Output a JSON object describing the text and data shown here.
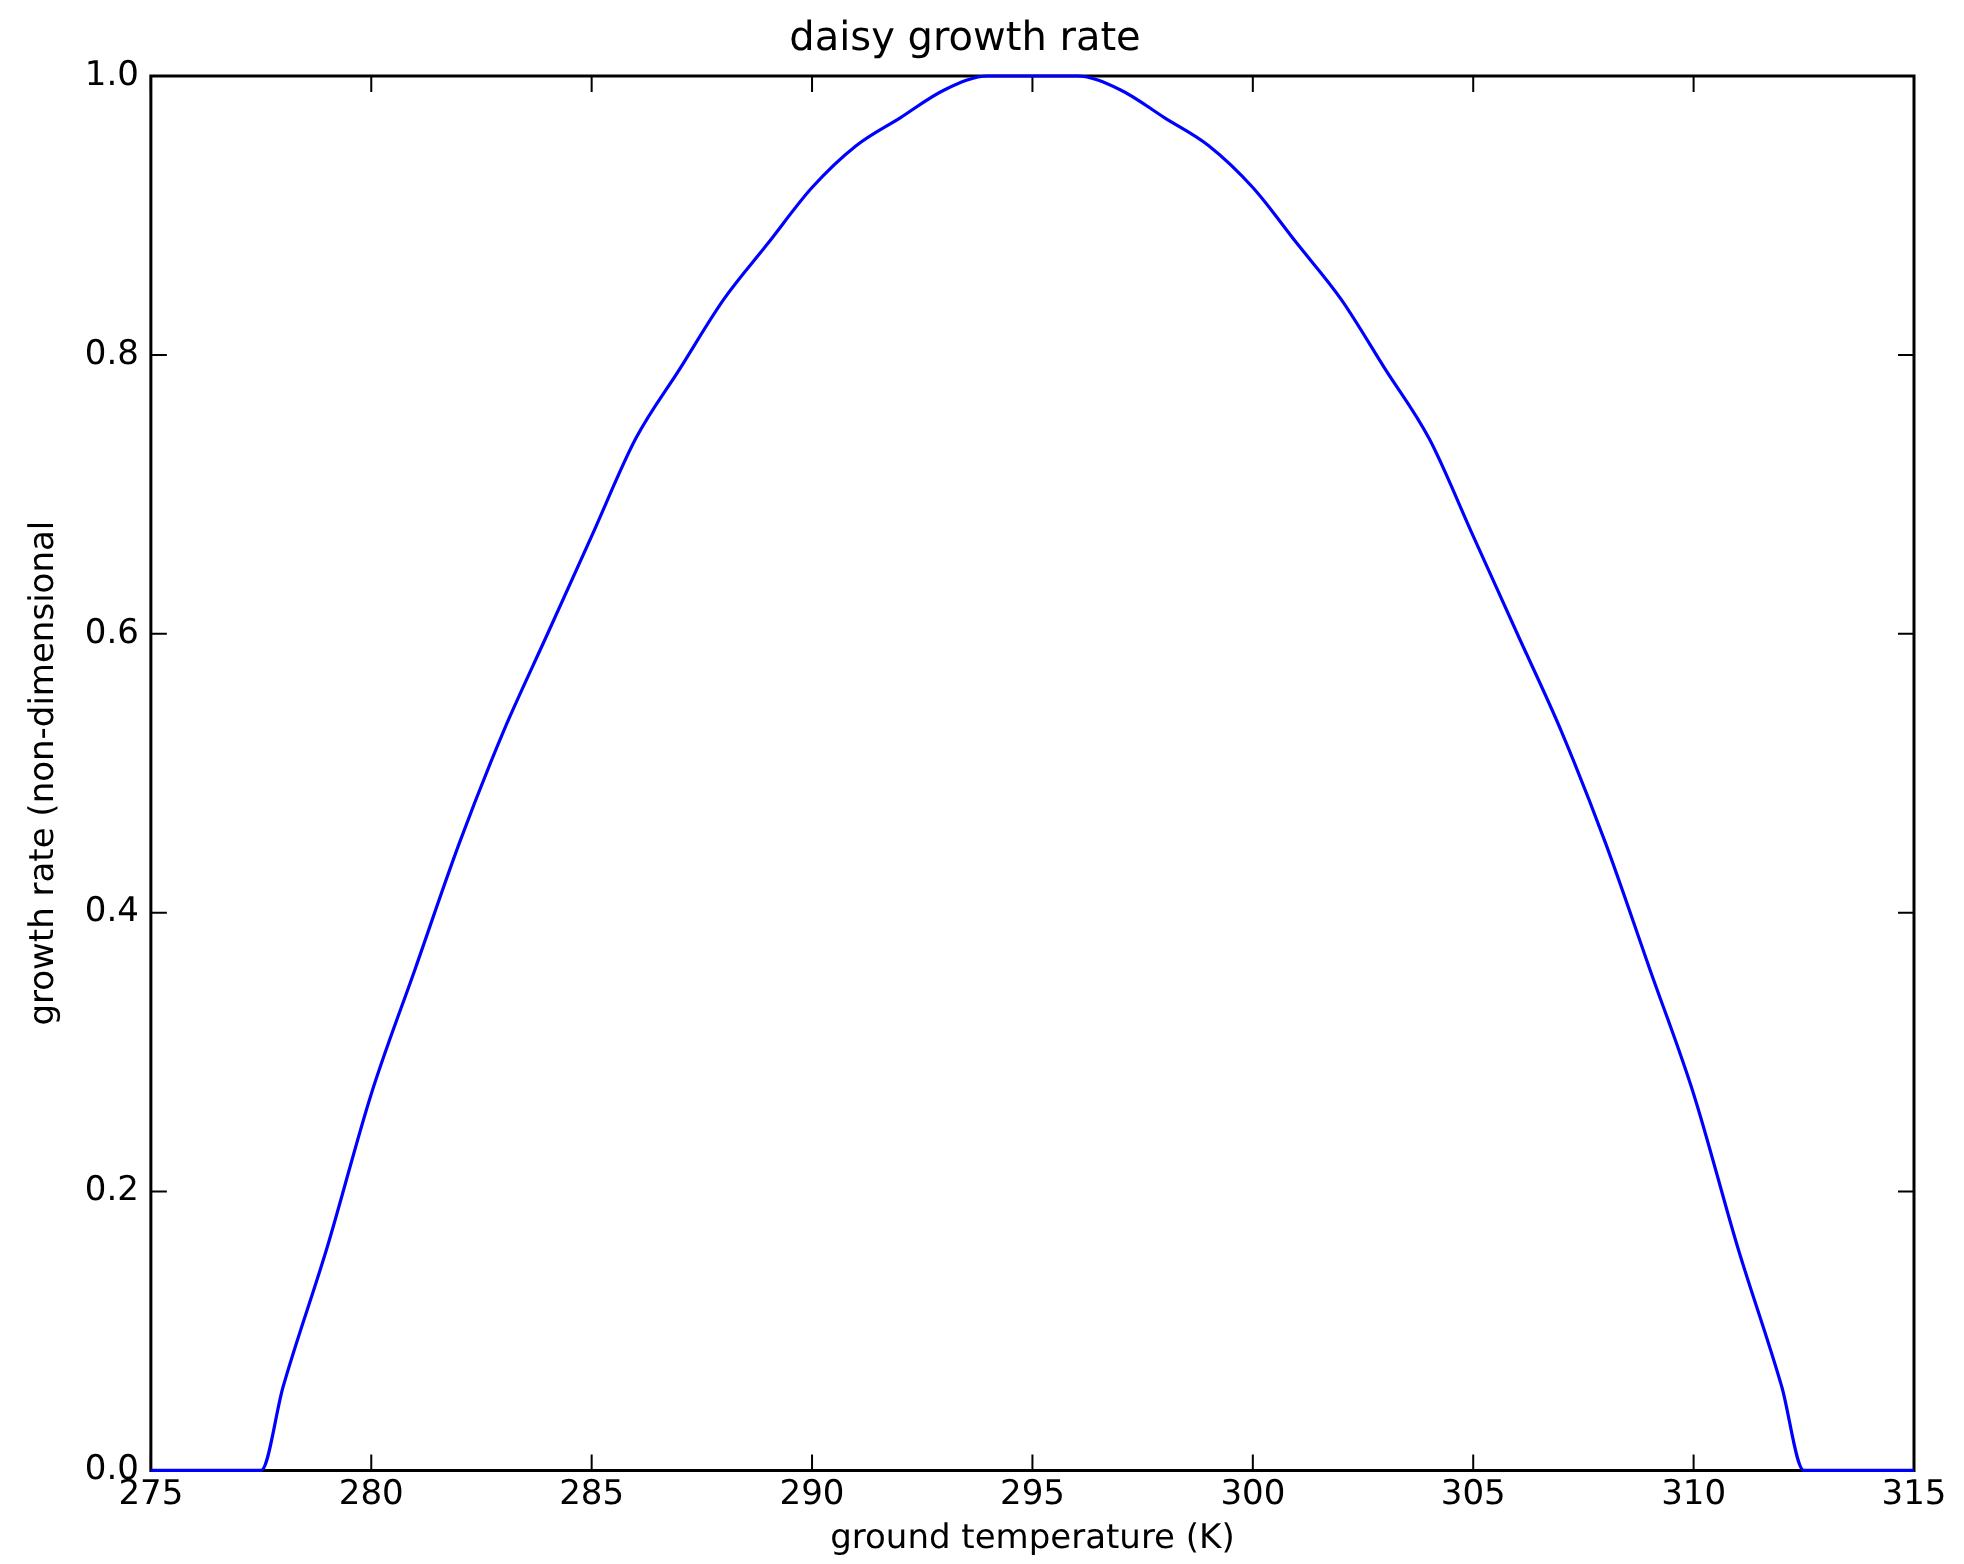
{
  "chart_data": {
    "type": "line",
    "title": "daisy growth rate",
    "xlabel": "ground temperature (K)",
    "ylabel": "growth rate (non-dimensional",
    "x": [
      275,
      276,
      277,
      277.5,
      278,
      279,
      280,
      281,
      282,
      283,
      284,
      285,
      286,
      287,
      288,
      289,
      290,
      291,
      292,
      293,
      294,
      295,
      296,
      297,
      298,
      299,
      300,
      301,
      302,
      303,
      304,
      305,
      306,
      307,
      308,
      309,
      310,
      311,
      312,
      312.5,
      313,
      314,
      315
    ],
    "series": [
      {
        "color": "#0000ff",
        "values": [
          0,
          0,
          0,
          0,
          0.06,
          0.16,
          0.27,
          0.36,
          0.45,
          0.53,
          0.6,
          0.67,
          0.74,
          0.79,
          0.84,
          0.88,
          0.92,
          0.95,
          0.97,
          0.99,
          1.0,
          1.0,
          1.0,
          0.99,
          0.97,
          0.95,
          0.92,
          0.88,
          0.84,
          0.79,
          0.74,
          0.67,
          0.6,
          0.53,
          0.45,
          0.36,
          0.27,
          0.16,
          0.06,
          0,
          0,
          0,
          0
        ]
      }
    ],
    "xlim": [
      275,
      315
    ],
    "xticks": [
      275,
      280,
      285,
      290,
      295,
      300,
      305,
      310,
      315
    ],
    "ylim": [
      0,
      1
    ],
    "yticks": [
      {
        "value": 0,
        "label": "0.0"
      },
      {
        "value": 0.2,
        "label": "0.2"
      },
      {
        "value": 0.4,
        "label": "0.4"
      },
      {
        "value": 0.6,
        "label": "0.6"
      },
      {
        "value": 0.8,
        "label": "0.8"
      },
      {
        "value": 1,
        "label": "1.0"
      }
    ],
    "legend": false,
    "marker": "none",
    "line_style": "solid"
  }
}
